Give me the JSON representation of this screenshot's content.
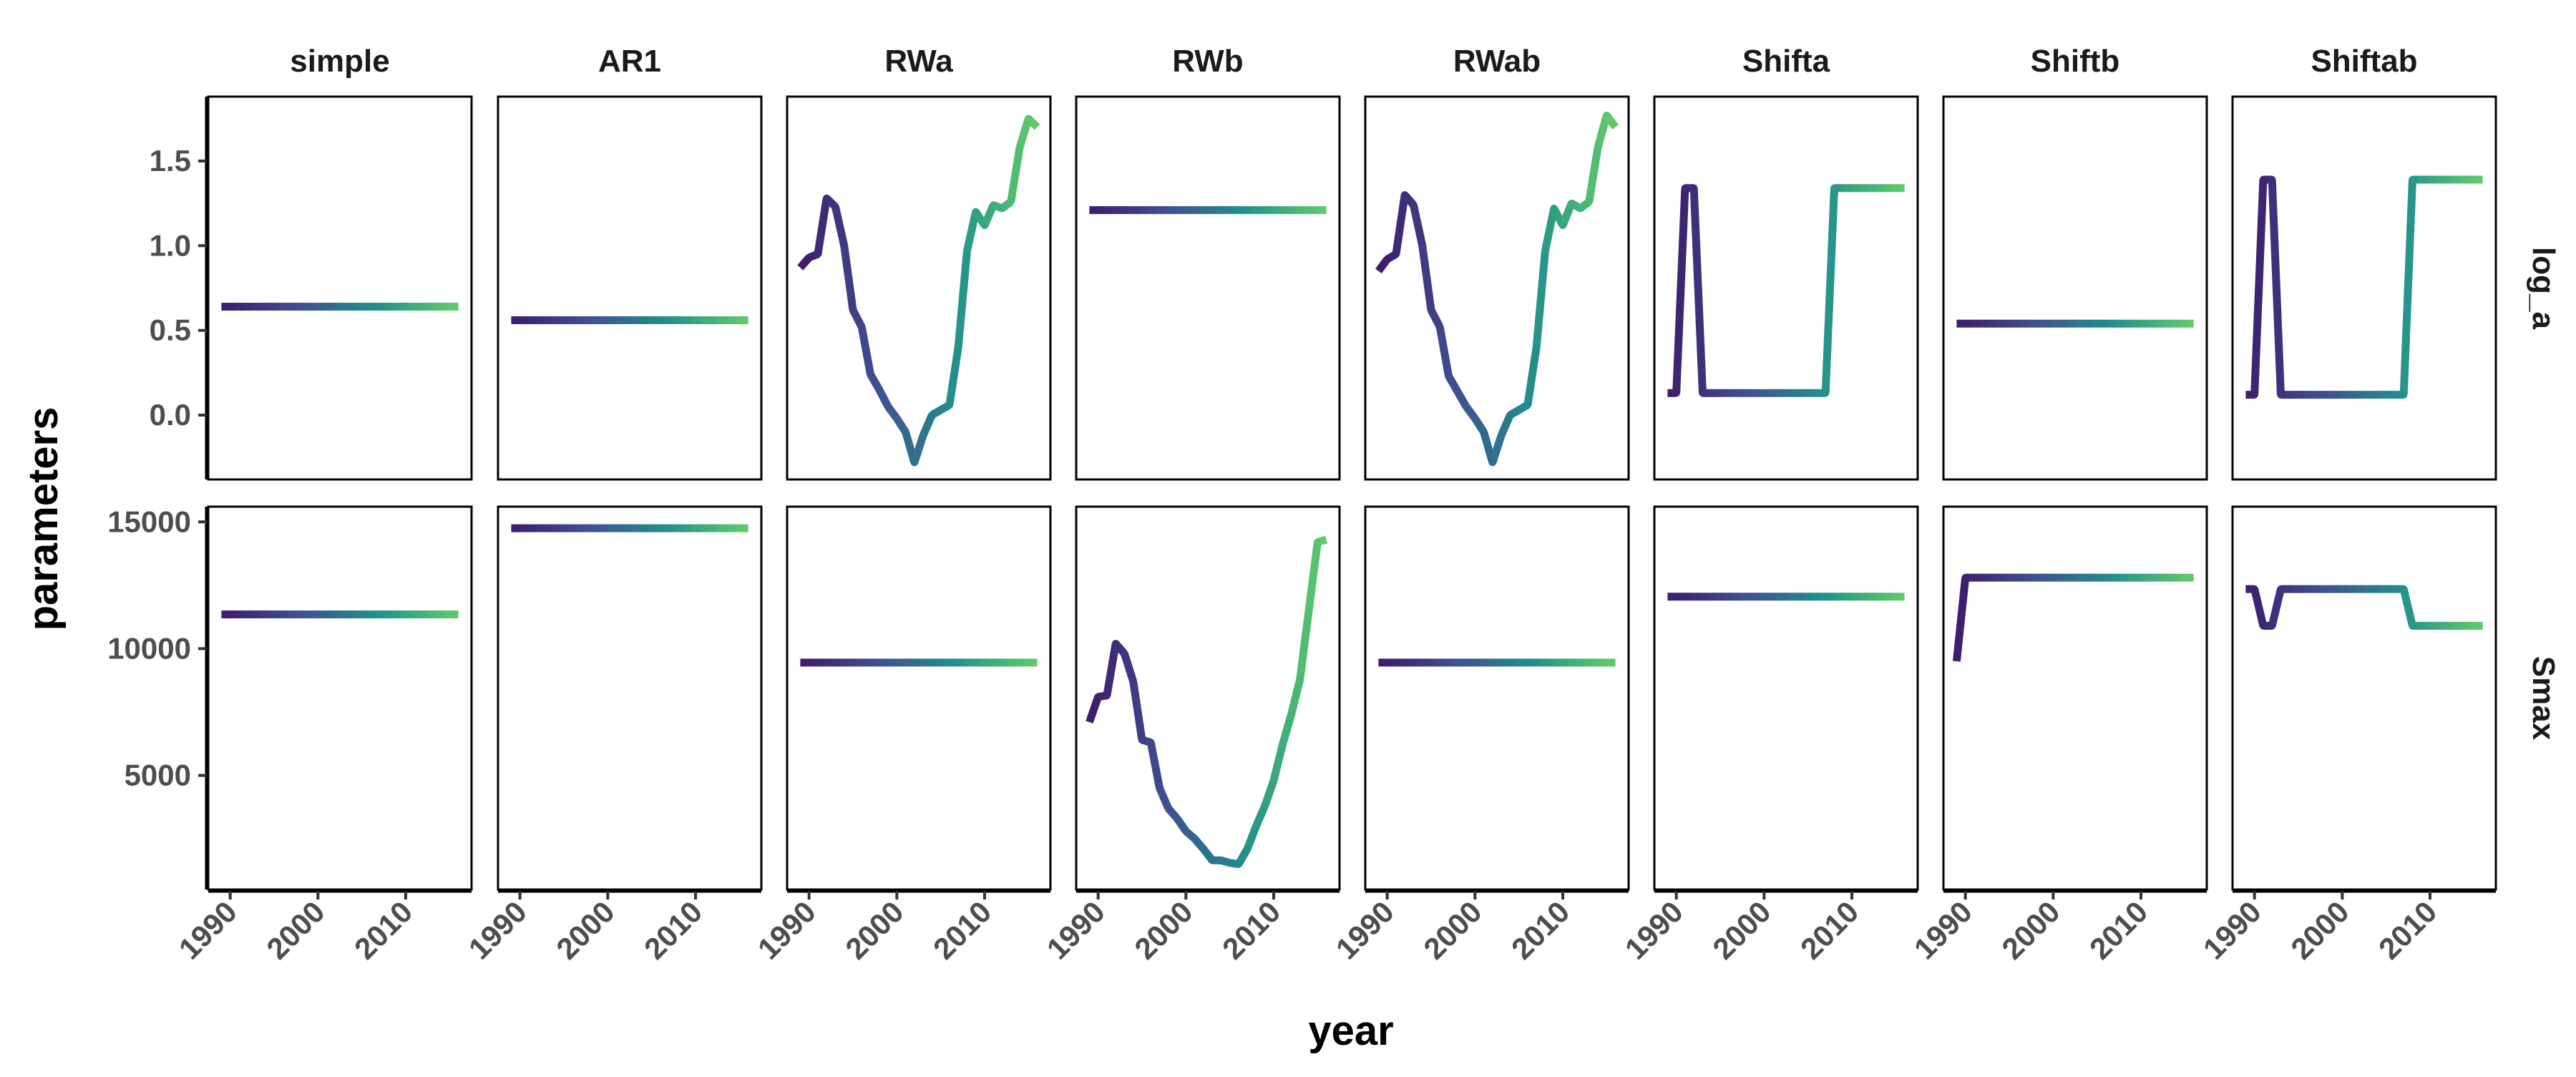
{
  "chart_data": {
    "type": "line",
    "xlabel": "year",
    "ylabel": "parameters",
    "facet_columns": [
      "simple",
      "AR1",
      "RWa",
      "RWb",
      "RWab",
      "Shifta",
      "Shiftb",
      "Shiftab"
    ],
    "facet_rows": [
      "log_a",
      "Smax"
    ],
    "x": [
      1989,
      1990,
      1991,
      1992,
      1993,
      1994,
      1995,
      1996,
      1997,
      1998,
      1999,
      2000,
      2001,
      2002,
      2003,
      2004,
      2005,
      2006,
      2007,
      2008,
      2009,
      2010,
      2011,
      2012,
      2013,
      2014,
      2015,
      2016
    ],
    "xlim": [
      1987.5,
      2017.5
    ],
    "x_ticks": [
      1990,
      2000,
      2010
    ],
    "x_tick_labels": [
      "1990",
      "2000",
      "2010"
    ],
    "color_scale": "viridis",
    "color_range": [
      "#3e1f6e",
      "#5fc96a"
    ],
    "rows": [
      {
        "name": "log_a",
        "ylim": [
          -0.38,
          1.88
        ],
        "y_ticks": [
          0.0,
          0.5,
          1.0,
          1.5
        ],
        "y_tick_labels": [
          "0.0",
          "0.5",
          "1.0",
          "1.5"
        ],
        "series": [
          {
            "model": "simple",
            "values": [
              0.64,
              0.64,
              0.64,
              0.64,
              0.64,
              0.64,
              0.64,
              0.64,
              0.64,
              0.64,
              0.64,
              0.64,
              0.64,
              0.64,
              0.64,
              0.64,
              0.64,
              0.64,
              0.64,
              0.64,
              0.64,
              0.64,
              0.64,
              0.64,
              0.64,
              0.64,
              0.64,
              0.64
            ]
          },
          {
            "model": "AR1",
            "values": [
              0.56,
              0.56,
              0.56,
              0.56,
              0.56,
              0.56,
              0.56,
              0.56,
              0.56,
              0.56,
              0.56,
              0.56,
              0.56,
              0.56,
              0.56,
              0.56,
              0.56,
              0.56,
              0.56,
              0.56,
              0.56,
              0.56,
              0.56,
              0.56,
              0.56,
              0.56,
              0.56,
              0.56
            ]
          },
          {
            "model": "RWa",
            "values": [
              0.87,
              0.93,
              0.95,
              1.28,
              1.23,
              1.0,
              0.62,
              0.52,
              0.24,
              0.15,
              0.05,
              -0.02,
              -0.1,
              -0.28,
              -0.12,
              0.0,
              0.03,
              0.06,
              0.4,
              0.97,
              1.2,
              1.12,
              1.24,
              1.22,
              1.26,
              1.58,
              1.75,
              1.7
            ]
          },
          {
            "model": "RWb",
            "values": [
              1.21,
              1.21,
              1.21,
              1.21,
              1.21,
              1.21,
              1.21,
              1.21,
              1.21,
              1.21,
              1.21,
              1.21,
              1.21,
              1.21,
              1.21,
              1.21,
              1.21,
              1.21,
              1.21,
              1.21,
              1.21,
              1.21,
              1.21,
              1.21,
              1.21,
              1.21,
              1.21,
              1.21
            ]
          },
          {
            "model": "RWab",
            "values": [
              0.85,
              0.92,
              0.95,
              1.3,
              1.24,
              1.0,
              0.62,
              0.52,
              0.23,
              0.14,
              0.05,
              -0.02,
              -0.1,
              -0.28,
              -0.12,
              0.0,
              0.03,
              0.06,
              0.4,
              0.97,
              1.22,
              1.12,
              1.25,
              1.22,
              1.26,
              1.58,
              1.77,
              1.7
            ]
          },
          {
            "model": "Shifta",
            "values": [
              0.13,
              0.13,
              1.34,
              1.34,
              0.13,
              0.13,
              0.13,
              0.13,
              0.13,
              0.13,
              0.13,
              0.13,
              0.13,
              0.13,
              0.13,
              0.13,
              0.13,
              0.13,
              0.13,
              1.34,
              1.34,
              1.34,
              1.34,
              1.34,
              1.34,
              1.34,
              1.34,
              1.34
            ]
          },
          {
            "model": "Shiftb",
            "values": [
              0.54,
              0.54,
              0.54,
              0.54,
              0.54,
              0.54,
              0.54,
              0.54,
              0.54,
              0.54,
              0.54,
              0.54,
              0.54,
              0.54,
              0.54,
              0.54,
              0.54,
              0.54,
              0.54,
              0.54,
              0.54,
              0.54,
              0.54,
              0.54,
              0.54,
              0.54,
              0.54,
              0.54
            ]
          },
          {
            "model": "Shiftab",
            "values": [
              0.12,
              0.12,
              1.39,
              1.39,
              0.12,
              0.12,
              0.12,
              0.12,
              0.12,
              0.12,
              0.12,
              0.12,
              0.12,
              0.12,
              0.12,
              0.12,
              0.12,
              0.12,
              0.12,
              1.39,
              1.39,
              1.39,
              1.39,
              1.39,
              1.39,
              1.39,
              1.39,
              1.39
            ]
          }
        ]
      },
      {
        "name": "Smax",
        "ylim": [
          500,
          15600
        ],
        "y_ticks": [
          5000,
          10000,
          15000
        ],
        "y_tick_labels": [
          "5000",
          "10000",
          "15000"
        ],
        "series": [
          {
            "model": "simple",
            "values": [
              11350,
              11350,
              11350,
              11350,
              11350,
              11350,
              11350,
              11350,
              11350,
              11350,
              11350,
              11350,
              11350,
              11350,
              11350,
              11350,
              11350,
              11350,
              11350,
              11350,
              11350,
              11350,
              11350,
              11350,
              11350,
              11350,
              11350,
              11350
            ]
          },
          {
            "model": "AR1",
            "values": [
              14750,
              14750,
              14750,
              14750,
              14750,
              14750,
              14750,
              14750,
              14750,
              14750,
              14750,
              14750,
              14750,
              14750,
              14750,
              14750,
              14750,
              14750,
              14750,
              14750,
              14750,
              14750,
              14750,
              14750,
              14750,
              14750,
              14750,
              14750
            ]
          },
          {
            "model": "RWa",
            "values": [
              9450,
              9450,
              9450,
              9450,
              9450,
              9450,
              9450,
              9450,
              9450,
              9450,
              9450,
              9450,
              9450,
              9450,
              9450,
              9450,
              9450,
              9450,
              9450,
              9450,
              9450,
              9450,
              9450,
              9450,
              9450,
              9450,
              9450,
              9450
            ]
          },
          {
            "model": "RWb",
            "values": [
              7100,
              8100,
              8150,
              10200,
              9800,
              8700,
              6400,
              6300,
              4500,
              3700,
              3300,
              2800,
              2500,
              2100,
              1650,
              1650,
              1550,
              1500,
              2100,
              3000,
              3800,
              4800,
              6200,
              7400,
              8800,
              11500,
              14200,
              14300
            ]
          },
          {
            "model": "RWab",
            "values": [
              9450,
              9450,
              9450,
              9450,
              9450,
              9450,
              9450,
              9450,
              9450,
              9450,
              9450,
              9450,
              9450,
              9450,
              9450,
              9450,
              9450,
              9450,
              9450,
              9450,
              9450,
              9450,
              9450,
              9450,
              9450,
              9450,
              9450,
              9450
            ]
          },
          {
            "model": "Shifta",
            "values": [
              12050,
              12050,
              12050,
              12050,
              12050,
              12050,
              12050,
              12050,
              12050,
              12050,
              12050,
              12050,
              12050,
              12050,
              12050,
              12050,
              12050,
              12050,
              12050,
              12050,
              12050,
              12050,
              12050,
              12050,
              12050,
              12050,
              12050,
              12050
            ]
          },
          {
            "model": "Shiftb",
            "values": [
              9500,
              12800,
              12800,
              12800,
              12800,
              12800,
              12800,
              12800,
              12800,
              12800,
              12800,
              12800,
              12800,
              12800,
              12800,
              12800,
              12800,
              12800,
              12800,
              12800,
              12800,
              12800,
              12800,
              12800,
              12800,
              12800,
              12800,
              12800
            ]
          },
          {
            "model": "Shiftab",
            "values": [
              12350,
              12350,
              10900,
              10900,
              12350,
              12350,
              12350,
              12350,
              12350,
              12350,
              12350,
              12350,
              12350,
              12350,
              12350,
              12350,
              12350,
              12350,
              12350,
              10900,
              10900,
              10900,
              10900,
              10900,
              10900,
              10900,
              10900,
              10900
            ]
          }
        ]
      }
    ]
  }
}
